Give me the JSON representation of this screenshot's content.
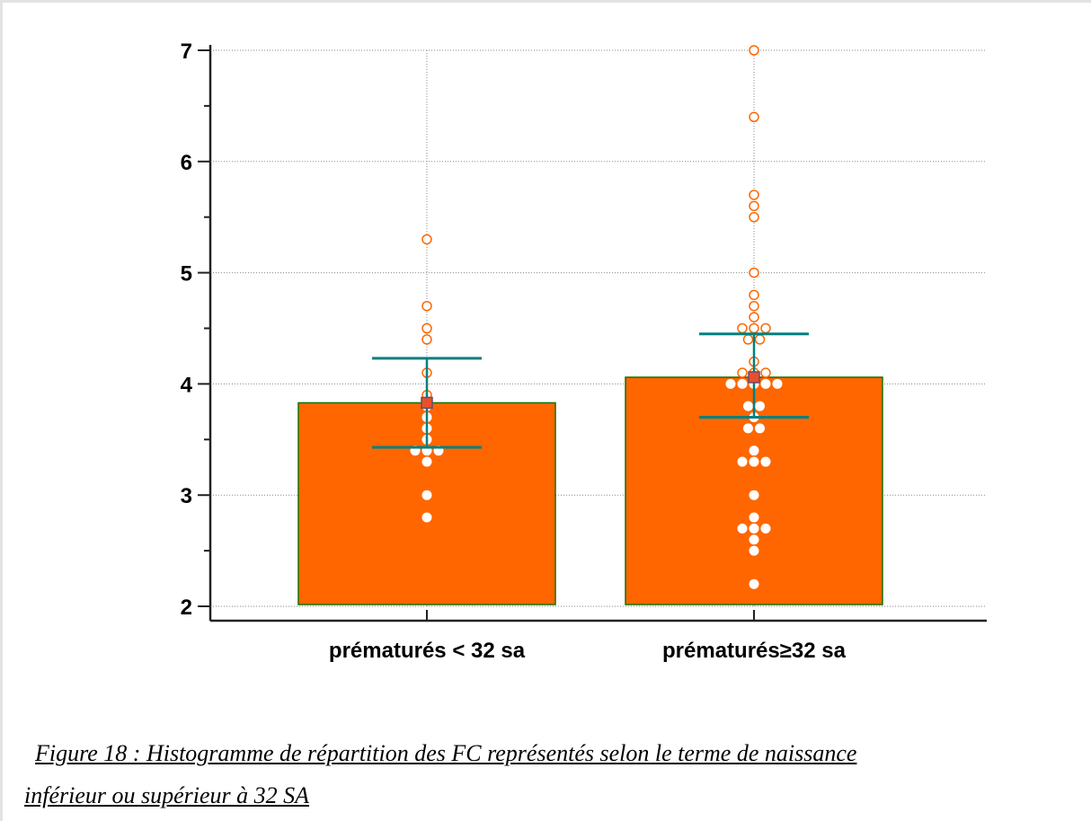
{
  "figure": {
    "caption_line1": "Figure 18 : Histogramme de répartition des FC représentés selon le terme de naissance",
    "caption_line2": "inférieur ou supérieur à 32 SA"
  },
  "chart_data": {
    "type": "bar",
    "title": "",
    "xlabel": "",
    "ylabel": "",
    "categories": [
      "prématurés < 32 sa",
      "prématurés≥32 sa"
    ],
    "ylim": [
      2,
      7
    ],
    "yticks": [
      2,
      3,
      4,
      5,
      6,
      7
    ],
    "grid": true,
    "bar_color": "#ff6600",
    "bar_edge_color": "#1a6e00",
    "error_color": "#008080",
    "outside_point_color": "#ff6600",
    "inside_point_color": "#ffffff",
    "mean_marker_color": "#e8502a",
    "series": [
      {
        "values": [
          3.83,
          4.06
        ],
        "error_upper": [
          4.23,
          4.45
        ],
        "error_lower": [
          3.43,
          3.7
        ],
        "points": [
          [
            5.3,
            4.7,
            4.5,
            4.4,
            4.1,
            3.9,
            3.8,
            3.7,
            3.6,
            3.5,
            3.4,
            3.4,
            3.4,
            3.3,
            3.0,
            2.8
          ],
          [
            7.0,
            6.4,
            5.7,
            5.6,
            5.5,
            5.0,
            4.8,
            4.7,
            4.6,
            4.5,
            4.5,
            4.5,
            4.4,
            4.4,
            4.2,
            4.1,
            4.1,
            4.1,
            4.0,
            4.0,
            4.0,
            4.0,
            4.0,
            3.8,
            3.8,
            3.7,
            3.6,
            3.6,
            3.4,
            3.3,
            3.3,
            3.3,
            3.0,
            2.8,
            2.7,
            2.7,
            2.7,
            2.6,
            2.5,
            2.2
          ]
        ]
      }
    ]
  }
}
